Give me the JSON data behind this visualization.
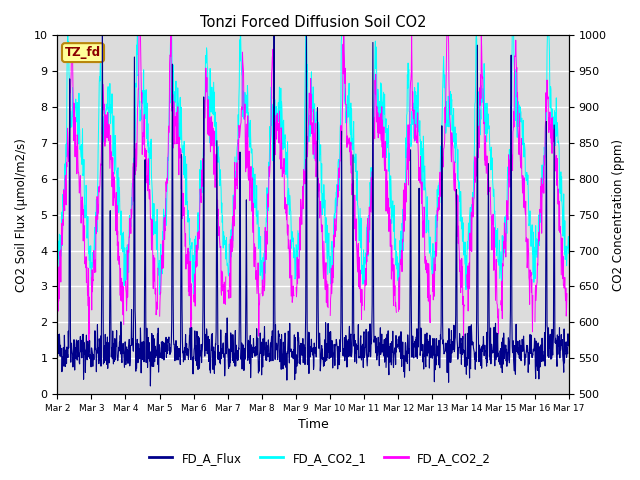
{
  "title": "Tonzi Forced Diffusion Soil CO2",
  "xlabel": "Time",
  "ylabel_left": "CO2 Soil Flux (μmol/m2/s)",
  "ylabel_right": "CO2 Concentration (ppm)",
  "tz_label": "TZ_fd",
  "ylim_left": [
    0.0,
    10.0
  ],
  "ylim_right": [
    500,
    1000
  ],
  "yticks_left": [
    0.0,
    1.0,
    2.0,
    3.0,
    4.0,
    5.0,
    6.0,
    7.0,
    8.0,
    9.0,
    10.0
  ],
  "yticks_right": [
    500,
    550,
    600,
    650,
    700,
    750,
    800,
    850,
    900,
    950,
    1000
  ],
  "xtick_labels": [
    "Mar 2",
    "Mar 3",
    "Mar 4",
    "Mar 5",
    "Mar 6",
    "Mar 7",
    "Mar 8",
    "Mar 9",
    "Mar 10",
    "Mar 11",
    "Mar 12",
    "Mar 13",
    "Mar 14",
    "Mar 15",
    "Mar 16",
    "Mar 17"
  ],
  "color_flux": "#00008B",
  "color_co2_1": "#00FFFF",
  "color_co2_2": "#FF00FF",
  "legend_labels": [
    "FD_A_Flux",
    "FD_A_CO2_1",
    "FD_A_CO2_2"
  ],
  "bg_color": "#DCDCDC",
  "n_days": 15,
  "pts_per_day": 96,
  "seed": 42
}
